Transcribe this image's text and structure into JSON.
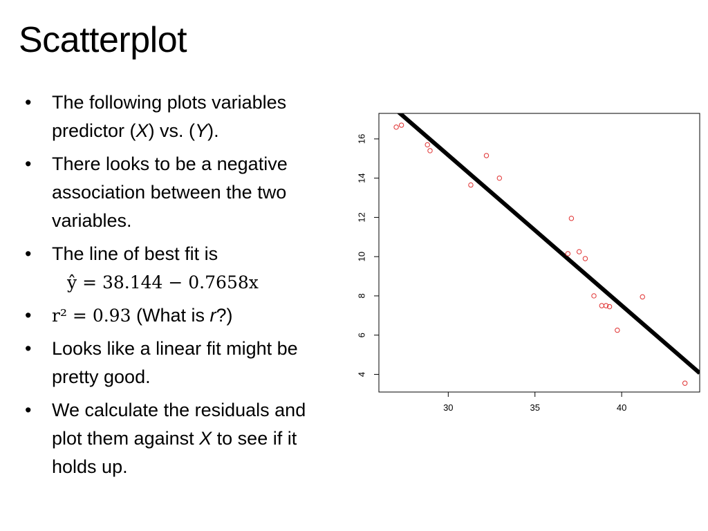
{
  "slide": {
    "title": "Scatterplot",
    "bullets": [
      {
        "parts": [
          "The following plots variables predictor (",
          "X",
          ") vs. (",
          "Y",
          ")."
        ]
      },
      {
        "text": "There looks to be a negative association between the two variables."
      },
      {
        "line1": "The line of best fit is",
        "equation": "ŷ = 38.144 − 0.7658x"
      },
      {
        "math": "r² = 0.93",
        "parts": [
          " (What is ",
          "r",
          "?)"
        ]
      },
      {
        "text": "Looks like a linear fit might be pretty good."
      },
      {
        "parts": [
          "We calculate the residuals and plot them against ",
          "X",
          " to see if it holds up."
        ]
      }
    ]
  },
  "chart_data": {
    "type": "scatter",
    "xlim": [
      26.0,
      44.5
    ],
    "ylim": [
      3.1,
      17.3
    ],
    "xticks": [
      30,
      35,
      40
    ],
    "yticks": [
      4,
      6,
      8,
      10,
      12,
      14,
      16
    ],
    "point_color": "#e03030",
    "line_color": "#000000",
    "points": [
      [
        27.0,
        16.6
      ],
      [
        27.3,
        16.7
      ],
      [
        28.8,
        15.7
      ],
      [
        28.95,
        15.4
      ],
      [
        31.3,
        13.65
      ],
      [
        32.2,
        15.15
      ],
      [
        32.95,
        14.0
      ],
      [
        36.9,
        10.15
      ],
      [
        37.1,
        11.95
      ],
      [
        37.55,
        10.25
      ],
      [
        37.9,
        9.9
      ],
      [
        38.4,
        8.0
      ],
      [
        38.85,
        7.5
      ],
      [
        39.1,
        7.5
      ],
      [
        39.3,
        7.45
      ],
      [
        39.75,
        6.25
      ],
      [
        41.2,
        7.95
      ],
      [
        43.65,
        3.55
      ]
    ],
    "fit": {
      "intercept": 38.144,
      "slope": -0.7658
    }
  }
}
